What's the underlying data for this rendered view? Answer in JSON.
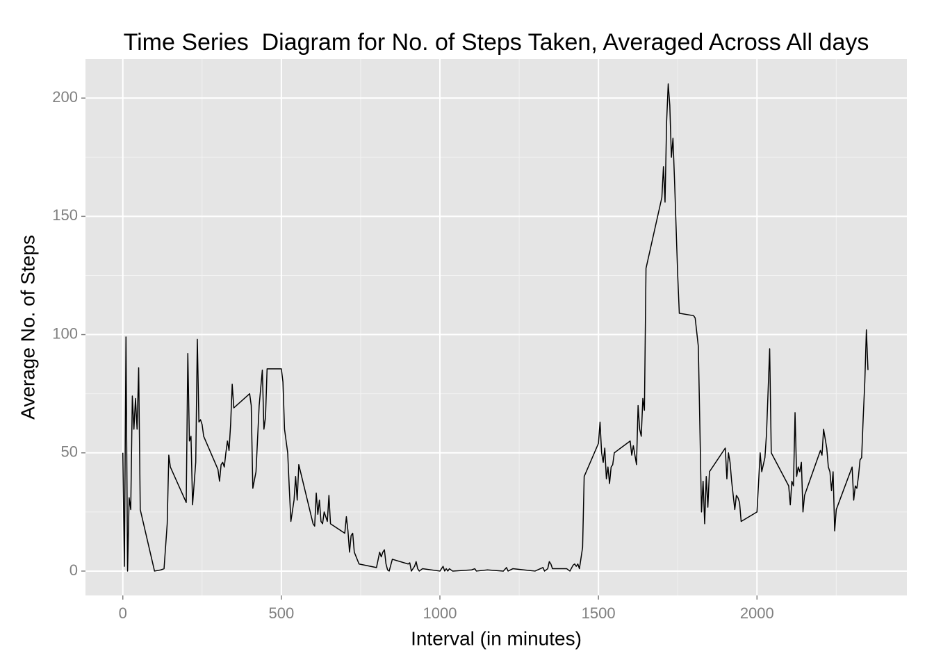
{
  "chart_data": {
    "type": "line",
    "title": "Time Series  Diagram for No. of Steps Taken, Averaged Across All days",
    "x_label": "Interval (in minutes)",
    "y_label": "Average No. of Steps",
    "color": "#000000",
    "grid": true,
    "xlim": [
      -117.75,
      2472.75
    ],
    "ylim": [
      -10.3,
      216.5
    ],
    "xticks": [
      0,
      500,
      1000,
      1500,
      2000
    ],
    "yticks": [
      0,
      50,
      100,
      150,
      200
    ],
    "x": [
      0,
      5,
      10,
      15,
      20,
      25,
      30,
      35,
      40,
      45,
      50,
      55,
      100,
      120,
      130,
      140,
      145,
      150,
      200,
      205,
      210,
      215,
      220,
      230,
      235,
      240,
      245,
      250,
      255,
      300,
      305,
      310,
      315,
      320,
      325,
      330,
      335,
      340,
      345,
      350,
      400,
      405,
      410,
      420,
      430,
      440,
      445,
      450,
      455,
      500,
      505,
      510,
      520,
      525,
      530,
      540,
      545,
      550,
      555,
      600,
      605,
      610,
      615,
      620,
      625,
      630,
      635,
      645,
      650,
      655,
      700,
      705,
      710,
      715,
      720,
      725,
      730,
      745,
      800,
      810,
      815,
      820,
      825,
      830,
      835,
      840,
      850,
      900,
      905,
      910,
      920,
      925,
      930,
      935,
      945,
      1000,
      1010,
      1015,
      1020,
      1025,
      1030,
      1040,
      1100,
      1110,
      1115,
      1150,
      1200,
      1210,
      1215,
      1230,
      1300,
      1325,
      1330,
      1340,
      1345,
      1350,
      1355,
      1400,
      1410,
      1420,
      1425,
      1430,
      1435,
      1440,
      1450,
      1455,
      1500,
      1505,
      1510,
      1515,
      1520,
      1525,
      1530,
      1535,
      1540,
      1545,
      1550,
      1600,
      1605,
      1610,
      1615,
      1620,
      1625,
      1630,
      1635,
      1640,
      1645,
      1650,
      1700,
      1705,
      1710,
      1715,
      1720,
      1725,
      1730,
      1735,
      1740,
      1750,
      1755,
      1800,
      1805,
      1815,
      1820,
      1825,
      1830,
      1835,
      1840,
      1845,
      1850,
      1900,
      1905,
      1910,
      1915,
      1920,
      1925,
      1930,
      1935,
      1940,
      1945,
      1950,
      2000,
      2010,
      2015,
      2020,
      2025,
      2030,
      2040,
      2045,
      2100,
      2105,
      2110,
      2115,
      2120,
      2125,
      2130,
      2135,
      2140,
      2145,
      2150,
      2200,
      2205,
      2210,
      2215,
      2220,
      2225,
      2230,
      2235,
      2240,
      2245,
      2250,
      2300,
      2305,
      2310,
      2315,
      2320,
      2325,
      2330,
      2335,
      2340,
      2345,
      2350
    ],
    "values": [
      50,
      2,
      99,
      0,
      31,
      26,
      74,
      60,
      73,
      60,
      86,
      26,
      0,
      0.5,
      1,
      20,
      49,
      44,
      29,
      92,
      55,
      57,
      28,
      46,
      98,
      63,
      64,
      62,
      57,
      43,
      38,
      45,
      46,
      44,
      50,
      55,
      51,
      62,
      79,
      69,
      75,
      70,
      35,
      42,
      70,
      85,
      60,
      65,
      85.5,
      85.5,
      80,
      60,
      50,
      35,
      21,
      30,
      40,
      30,
      45,
      20,
      19,
      33,
      24,
      30,
      21,
      20,
      25,
      21,
      32,
      20,
      16,
      23,
      17,
      8,
      15,
      16,
      8,
      3,
      1.5,
      8,
      6,
      8,
      9,
      3,
      0.5,
      0,
      5,
      3,
      3.5,
      0,
      2,
      4,
      1,
      0,
      1,
      0,
      2,
      0,
      1,
      0,
      1,
      0,
      0.5,
      1,
      0,
      0.5,
      0,
      1.5,
      0,
      1,
      0,
      1.5,
      0,
      1,
      4,
      3,
      1,
      1,
      0,
      2.5,
      3,
      2,
      3,
      1,
      10,
      40,
      54,
      63,
      50,
      46,
      52,
      39,
      44,
      37,
      44,
      45,
      50,
      55,
      49,
      53,
      49,
      45,
      70,
      60,
      57,
      73,
      68,
      128,
      158,
      171,
      156,
      190,
      206,
      197,
      175,
      183,
      165,
      125,
      109,
      108,
      107,
      95,
      60,
      25,
      38,
      20,
      40,
      27,
      42,
      52,
      39,
      50,
      46,
      38,
      32,
      26,
      32,
      31,
      29,
      21,
      25,
      50,
      42,
      45,
      48,
      58,
      94,
      50,
      36,
      28,
      38,
      36,
      67,
      40,
      44,
      42,
      46,
      25,
      32,
      51,
      49,
      60,
      56,
      52,
      44,
      42,
      34,
      42,
      17,
      26,
      44,
      30,
      36,
      35,
      40,
      47,
      48,
      65,
      80,
      102,
      85
    ]
  }
}
